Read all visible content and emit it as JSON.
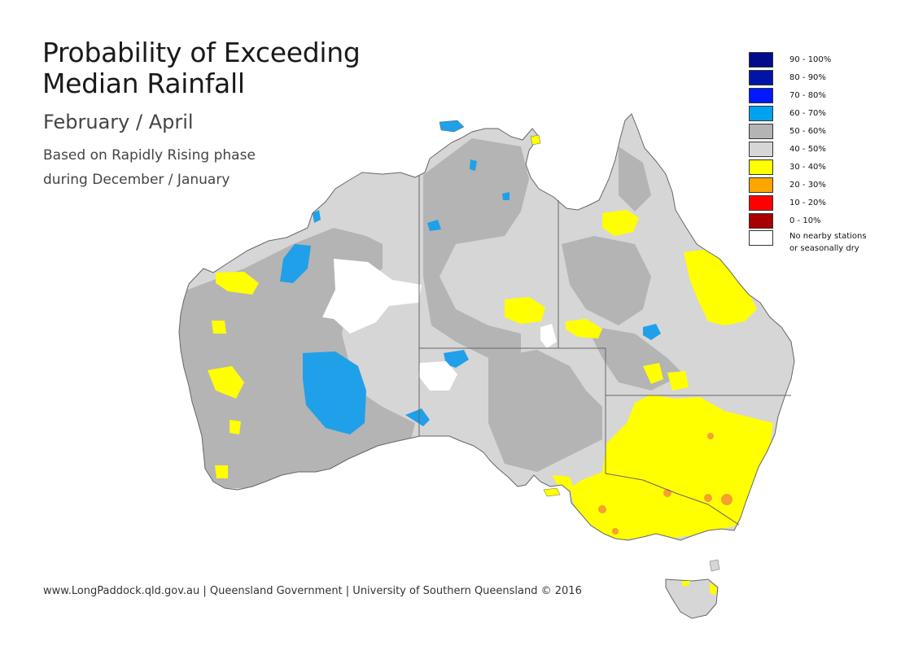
{
  "title_line1": "Probability of Exceeding",
  "title_line2": "Median Rainfall",
  "subtitle": "February / April",
  "description_line1": "Based on Rapidly Rising phase",
  "description_line2": "during December / January",
  "footer": "www.LongPaddock.qld.gov.au | Queensland Government | University of Southern Queensland © 2016",
  "legend": [
    {
      "label": "90 - 100%",
      "color": "#000c8c"
    },
    {
      "label": "80 - 90%",
      "color": "#0015a8"
    },
    {
      "label": "70 - 80%",
      "color": "#0019ff"
    },
    {
      "label": "60 - 70%",
      "color": "#00a2f0"
    },
    {
      "label": "50 - 60%",
      "color": "#b4b4b4"
    },
    {
      "label": "40 - 50%",
      "color": "#d6d6d6"
    },
    {
      "label": "30 - 40%",
      "color": "#ffff00"
    },
    {
      "label": "20 - 30%",
      "color": "#ffa500"
    },
    {
      "label": "10 - 20%",
      "color": "#ff0000"
    },
    {
      "label": "0 - 10%",
      "color": "#a80000"
    }
  ],
  "legend_note_line1": "No nearby stations",
  "legend_note_line2": "or seasonally dry",
  "legend_note_color": "#ffffff",
  "map_colors": {
    "light_grey": "#d6d6d6",
    "dark_grey": "#b4b4b4",
    "yellow": "#ffff00",
    "orange": "#f5a030",
    "blue": "#20a0e8",
    "no_data": "#ffffff",
    "border": "#666666"
  }
}
